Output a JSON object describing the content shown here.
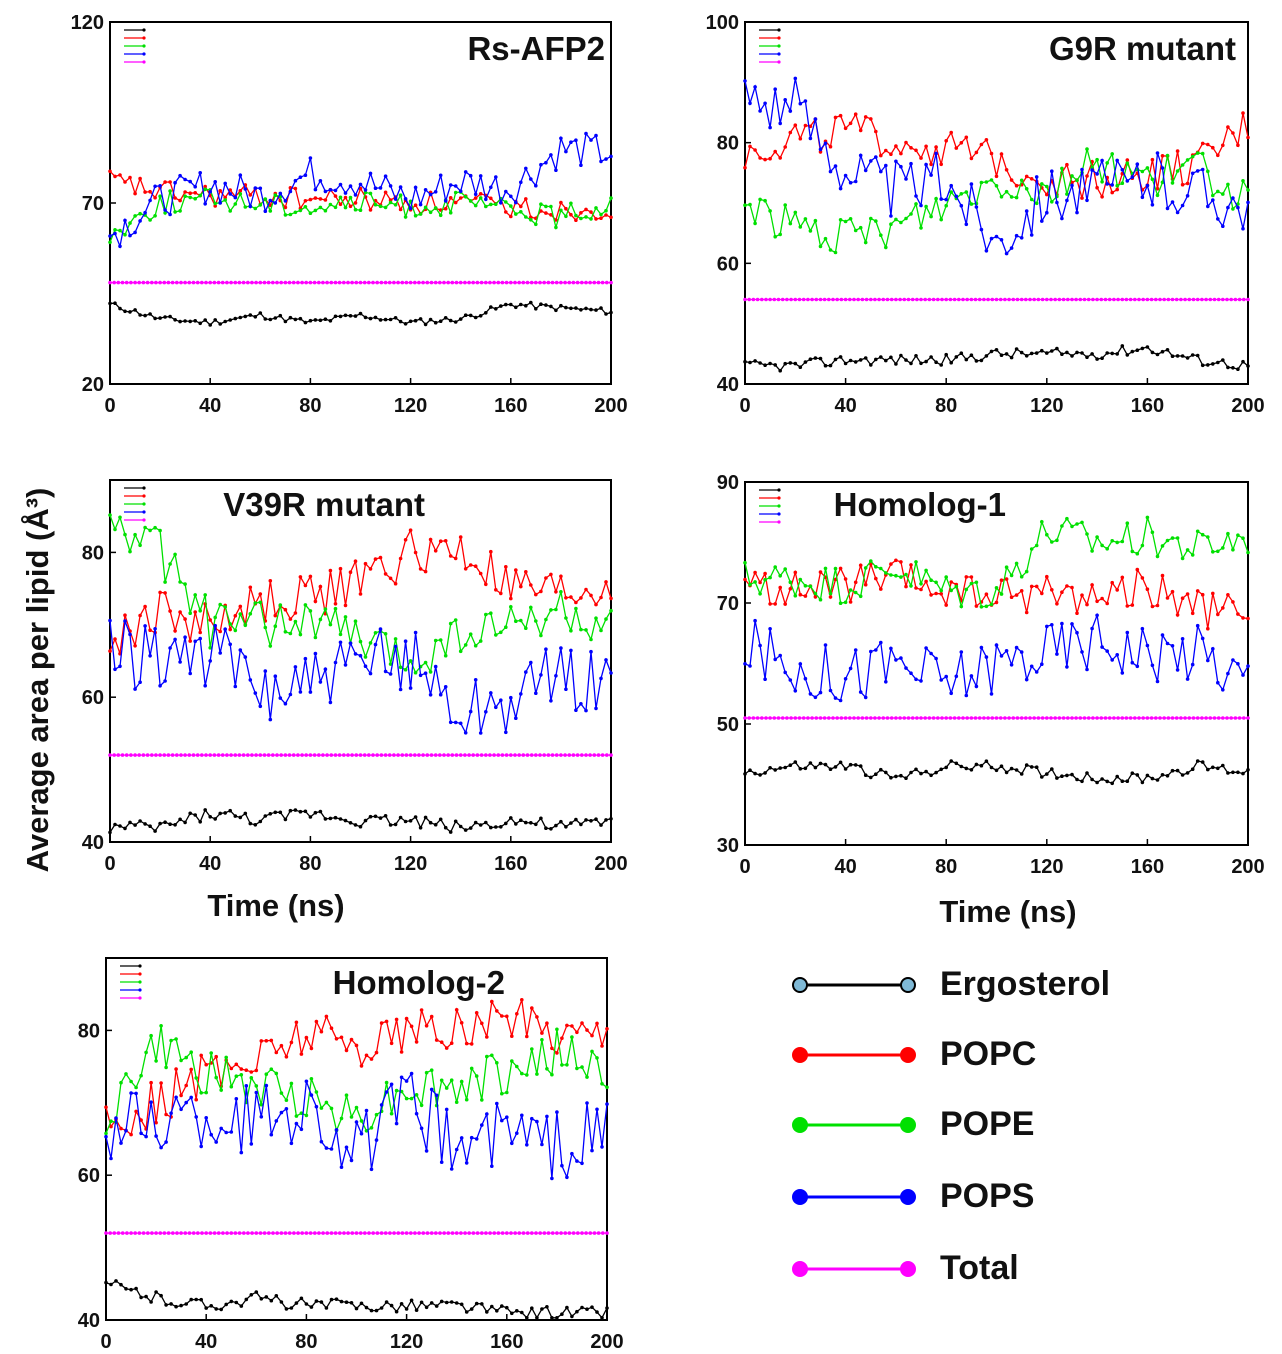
{
  "figure": {
    "y_axis_label": "Average area per lipid (Å³)",
    "legend": [
      {
        "name": "Ergosterol",
        "color": "#000000",
        "marker": "#7fb9d6"
      },
      {
        "name": "POPC",
        "color": "#ff0000",
        "marker": "#ff0000"
      },
      {
        "name": "POPE",
        "color": "#00e000",
        "marker": "#00e000"
      },
      {
        "name": "POPS",
        "color": "#0000ff",
        "marker": "#0000ff"
      },
      {
        "name": "Total",
        "color": "#ff00ff",
        "marker": "#ff00ff"
      }
    ]
  },
  "chart_data": [
    {
      "type": "line",
      "title": "Rs-AFP2",
      "xlabel": "",
      "ylabel": "",
      "xlim": [
        0,
        200
      ],
      "ylim": [
        20,
        120
      ],
      "xticks": [
        "0",
        "40",
        "80",
        "120",
        "160",
        "200"
      ],
      "yticks": [
        "20",
        "70",
        "120"
      ],
      "series": [
        {
          "name": "Ergosterol",
          "x": [
            0,
            20,
            40,
            60,
            80,
            100,
            120,
            140,
            160,
            180,
            200
          ],
          "values": [
            42,
            38,
            37,
            39,
            37,
            39,
            37,
            38,
            42,
            41,
            40
          ]
        },
        {
          "name": "POPC",
          "x": [
            0,
            20,
            40,
            60,
            80,
            100,
            120,
            140,
            160,
            180,
            200
          ],
          "values": [
            76,
            73,
            72,
            72,
            71,
            71,
            70,
            70,
            69,
            68,
            69
          ]
        },
        {
          "name": "POPE",
          "x": [
            0,
            20,
            40,
            60,
            80,
            100,
            120,
            140,
            160,
            180,
            200
          ],
          "values": [
            61,
            70,
            71,
            70,
            69,
            70,
            69,
            70,
            68,
            66,
            70
          ]
        },
        {
          "name": "POPS",
          "x": [
            0,
            20,
            40,
            60,
            80,
            100,
            120,
            140,
            160,
            180,
            200
          ],
          "values": [
            61,
            71,
            75,
            72,
            78,
            76,
            71,
            76,
            74,
            85,
            84
          ]
        },
        {
          "name": "Total",
          "x": [
            0,
            200
          ],
          "values": [
            48,
            48
          ]
        }
      ]
    },
    {
      "type": "line",
      "title": "G9R mutant",
      "xlabel": "",
      "ylabel": "",
      "xlim": [
        0,
        200
      ],
      "ylim": [
        40,
        100
      ],
      "xticks": [
        "0",
        "40",
        "80",
        "120",
        "160",
        "200"
      ],
      "yticks": [
        "40",
        "60",
        "80",
        "100"
      ],
      "series": [
        {
          "name": "Ergosterol",
          "x": [
            0,
            20,
            40,
            60,
            80,
            100,
            120,
            140,
            160,
            180,
            200
          ],
          "values": [
            43,
            43,
            44,
            44,
            44,
            45,
            45,
            45,
            46,
            44,
            43
          ]
        },
        {
          "name": "POPC",
          "x": [
            0,
            20,
            40,
            60,
            80,
            100,
            120,
            140,
            160,
            180,
            200
          ],
          "values": [
            78,
            81,
            82,
            80,
            79,
            77,
            74,
            74,
            75,
            76,
            83
          ]
        },
        {
          "name": "POPE",
          "x": [
            0,
            20,
            40,
            60,
            80,
            100,
            120,
            140,
            160,
            180,
            200
          ],
          "values": [
            70,
            66,
            64,
            66,
            70,
            74,
            72,
            77,
            74,
            76,
            70
          ]
        },
        {
          "name": "POPS",
          "x": [
            0,
            20,
            40,
            60,
            80,
            100,
            120,
            140,
            160,
            180,
            200
          ],
          "values": [
            88,
            86,
            76,
            72,
            74,
            64,
            72,
            72,
            74,
            72,
            70
          ]
        },
        {
          "name": "Total",
          "x": [
            0,
            200
          ],
          "values": [
            54,
            54
          ]
        }
      ]
    },
    {
      "type": "line",
      "title": "V39R mutant",
      "xlabel": "Time (ns)",
      "ylabel": "",
      "xlim": [
        0,
        200
      ],
      "ylim": [
        40,
        90
      ],
      "xticks": [
        "0",
        "40",
        "80",
        "120",
        "160",
        "200"
      ],
      "yticks": [
        "40",
        "60",
        "80"
      ],
      "series": [
        {
          "name": "Ergosterol",
          "x": [
            0,
            20,
            40,
            60,
            80,
            100,
            120,
            140,
            160,
            180,
            200
          ],
          "values": [
            42,
            42,
            44,
            43,
            44,
            43,
            43,
            42,
            43,
            42,
            43
          ]
        },
        {
          "name": "POPC",
          "x": [
            0,
            20,
            40,
            60,
            80,
            100,
            120,
            140,
            160,
            180,
            200
          ],
          "values": [
            67,
            72,
            70,
            73,
            74,
            76,
            80,
            80,
            75,
            74,
            75
          ]
        },
        {
          "name": "POPE",
          "x": [
            0,
            20,
            40,
            60,
            80,
            100,
            120,
            140,
            160,
            180,
            200
          ],
          "values": [
            84,
            80,
            70,
            70,
            71,
            68,
            65,
            69,
            70,
            72,
            69
          ]
        },
        {
          "name": "POPS",
          "x": [
            0,
            20,
            40,
            60,
            80,
            100,
            120,
            140,
            160,
            180,
            200
          ],
          "values": [
            66,
            66,
            66,
            61,
            62,
            64,
            66,
            58,
            60,
            63,
            62
          ]
        },
        {
          "name": "Total",
          "x": [
            0,
            200
          ],
          "values": [
            52,
            52
          ]
        }
      ]
    },
    {
      "type": "line",
      "title": "Homolog-1",
      "xlabel": "Time (ns)",
      "ylabel": "",
      "xlim": [
        0,
        200
      ],
      "ylim": [
        30,
        90
      ],
      "xticks": [
        "0",
        "40",
        "80",
        "120",
        "160",
        "200"
      ],
      "yticks": [
        "30",
        "50",
        "70",
        "90"
      ],
      "series": [
        {
          "name": "Ergosterol",
          "x": [
            0,
            20,
            40,
            60,
            80,
            100,
            120,
            140,
            160,
            180,
            200
          ],
          "values": [
            42,
            43,
            43,
            41,
            43,
            43,
            42,
            41,
            41,
            43,
            42
          ]
        },
        {
          "name": "POPC",
          "x": [
            0,
            20,
            40,
            60,
            80,
            100,
            120,
            140,
            160,
            180,
            200
          ],
          "values": [
            73,
            72,
            73,
            74,
            72,
            71,
            72,
            71,
            73,
            69,
            68
          ]
        },
        {
          "name": "POPE",
          "x": [
            0,
            20,
            40,
            60,
            80,
            100,
            120,
            140,
            160,
            180,
            200
          ],
          "values": [
            74,
            74,
            73,
            76,
            72,
            72,
            82,
            80,
            81,
            79,
            81
          ]
        },
        {
          "name": "POPS",
          "x": [
            0,
            20,
            40,
            60,
            80,
            100,
            120,
            140,
            160,
            180,
            200
          ],
          "values": [
            63,
            59,
            58,
            60,
            57,
            60,
            62,
            64,
            62,
            62,
            57
          ]
        },
        {
          "name": "Total",
          "x": [
            0,
            200
          ],
          "values": [
            51,
            51
          ]
        }
      ]
    },
    {
      "type": "line",
      "title": "Homolog-2",
      "xlabel": "",
      "ylabel": "",
      "xlim": [
        0,
        200
      ],
      "ylim": [
        40,
        90
      ],
      "xticks": [
        "0",
        "40",
        "80",
        "120",
        "160",
        "200"
      ],
      "yticks": [
        "40",
        "60",
        "80"
      ],
      "series": [
        {
          "name": "Ergosterol",
          "x": [
            0,
            20,
            40,
            60,
            80,
            100,
            120,
            140,
            160,
            180,
            200
          ],
          "values": [
            45,
            43,
            42,
            43,
            42,
            42,
            42,
            42,
            41,
            41,
            41
          ]
        },
        {
          "name": "POPC",
          "x": [
            0,
            20,
            40,
            60,
            80,
            100,
            120,
            140,
            160,
            180,
            200
          ],
          "values": [
            67,
            70,
            74,
            76,
            80,
            78,
            80,
            80,
            82,
            80,
            80
          ]
        },
        {
          "name": "POPE",
          "x": [
            0,
            20,
            40,
            60,
            80,
            100,
            120,
            140,
            160,
            180,
            200
          ],
          "values": [
            68,
            78,
            74,
            72,
            71,
            68,
            72,
            72,
            74,
            77,
            74
          ]
        },
        {
          "name": "POPS",
          "x": [
            0,
            20,
            40,
            60,
            80,
            100,
            120,
            140,
            160,
            180,
            200
          ],
          "values": [
            66,
            68,
            68,
            68,
            70,
            63,
            70,
            64,
            66,
            64,
            66
          ]
        },
        {
          "name": "Total",
          "x": [
            0,
            200
          ],
          "values": [
            52,
            52
          ]
        }
      ]
    }
  ]
}
